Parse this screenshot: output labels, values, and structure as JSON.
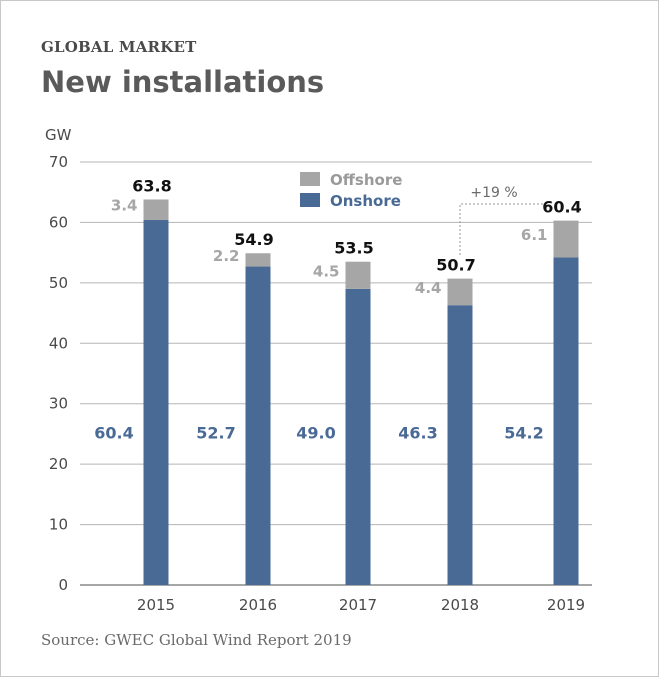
{
  "header": {
    "kicker": "GLOBAL MARKET",
    "title": "New installations"
  },
  "footer": {
    "source": "Source: GWEC Global Wind Report 2019"
  },
  "chart_data": {
    "type": "bar",
    "stacked": true,
    "ylabel": "GW",
    "xlabel": "",
    "ylim": [
      0,
      70
    ],
    "yticks": [
      0,
      10,
      20,
      30,
      40,
      50,
      60,
      70
    ],
    "grid": true,
    "legend_position": "top-center",
    "categories": [
      "2015",
      "2016",
      "2017",
      "2018",
      "2019"
    ],
    "series": [
      {
        "name": "Onshore",
        "color": "#4a6a96",
        "values": [
          60.4,
          52.7,
          49.0,
          46.3,
          54.2
        ],
        "labels": [
          "60.4",
          "52.7",
          "49.0",
          "46.3",
          "54.2"
        ]
      },
      {
        "name": "Offshore",
        "color": "#a6a6a6",
        "values": [
          3.4,
          2.2,
          4.5,
          4.4,
          6.1
        ],
        "labels": [
          "3.4",
          "2.2",
          "4.5",
          "4.4",
          "6.1"
        ]
      }
    ],
    "totals": [
      "63.8",
      "54.9",
      "53.5",
      "50.7",
      "60.4"
    ],
    "annotation": {
      "text": "+19 %",
      "from": "2018",
      "to": "2019"
    }
  }
}
